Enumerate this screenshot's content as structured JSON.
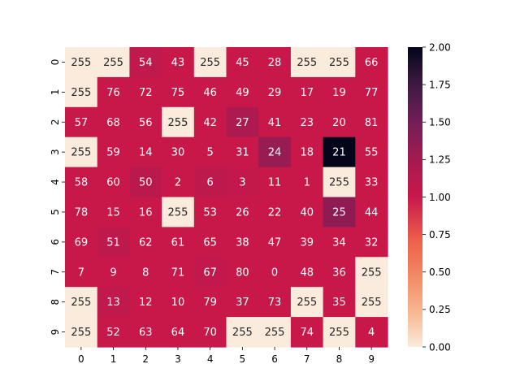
{
  "chart_data": {
    "type": "heatmap",
    "title": "",
    "xlabel": "",
    "ylabel": "",
    "x_ticks": [
      "0",
      "1",
      "2",
      "3",
      "4",
      "5",
      "6",
      "7",
      "8",
      "9"
    ],
    "y_ticks": [
      "0",
      "1",
      "2",
      "3",
      "4",
      "5",
      "6",
      "7",
      "8",
      "9"
    ],
    "annotations": [
      [
        "255",
        "255",
        "54",
        "43",
        "255",
        "45",
        "28",
        "255",
        "255",
        "66"
      ],
      [
        "255",
        "76",
        "72",
        "75",
        "46",
        "49",
        "29",
        "17",
        "19",
        "77"
      ],
      [
        "57",
        "68",
        "56",
        "255",
        "42",
        "27",
        "41",
        "23",
        "20",
        "81"
      ],
      [
        "255",
        "59",
        "14",
        "30",
        "5",
        "31",
        "24",
        "18",
        "21",
        "55"
      ],
      [
        "58",
        "60",
        "50",
        "2",
        "6",
        "3",
        "11",
        "1",
        "255",
        "33"
      ],
      [
        "78",
        "15",
        "16",
        "255",
        "53",
        "26",
        "22",
        "40",
        "25",
        "44"
      ],
      [
        "69",
        "51",
        "62",
        "61",
        "65",
        "38",
        "47",
        "39",
        "34",
        "32"
      ],
      [
        "7",
        "9",
        "8",
        "71",
        "67",
        "80",
        "0",
        "48",
        "36",
        "255"
      ],
      [
        "255",
        "13",
        "12",
        "10",
        "79",
        "37",
        "73",
        "255",
        "35",
        "255"
      ],
      [
        "255",
        "52",
        "63",
        "64",
        "70",
        "255",
        "255",
        "74",
        "255",
        "4"
      ]
    ],
    "values": [
      [
        0.0,
        0.0,
        1.06,
        1.0,
        0.0,
        1.0,
        1.0,
        0.0,
        0.0,
        1.0
      ],
      [
        0.0,
        1.0,
        1.0,
        1.0,
        1.0,
        1.0,
        1.0,
        1.0,
        1.0,
        1.0
      ],
      [
        1.0,
        1.0,
        1.0,
        0.0,
        1.0,
        1.2,
        1.0,
        1.0,
        1.0,
        1.0
      ],
      [
        0.0,
        1.0,
        1.0,
        1.0,
        1.0,
        1.0,
        1.32,
        1.0,
        2.0,
        1.0
      ],
      [
        1.0,
        1.0,
        1.1,
        1.0,
        1.08,
        1.04,
        1.0,
        1.0,
        0.0,
        1.0
      ],
      [
        1.0,
        1.0,
        1.0,
        0.0,
        1.0,
        1.0,
        1.0,
        1.0,
        1.36,
        1.0
      ],
      [
        1.0,
        1.08,
        1.0,
        1.0,
        1.0,
        1.0,
        1.0,
        1.0,
        1.0,
        1.0
      ],
      [
        1.0,
        1.0,
        1.0,
        1.0,
        1.04,
        1.0,
        1.0,
        1.0,
        1.0,
        0.0
      ],
      [
        0.0,
        1.06,
        1.0,
        1.0,
        1.0,
        1.0,
        1.0,
        0.0,
        1.0,
        0.0
      ],
      [
        0.0,
        1.0,
        1.0,
        1.0,
        1.0,
        0.0,
        0.0,
        1.0,
        0.0,
        1.0
      ]
    ],
    "colorbar": {
      "min": 0,
      "max": 2,
      "ticks": [
        "0.00",
        "0.25",
        "0.50",
        "0.75",
        "1.00",
        "1.25",
        "1.50",
        "1.75",
        "2.00"
      ]
    },
    "colormap": "rocket_r",
    "grid": false,
    "legend": "colorbar-right"
  }
}
